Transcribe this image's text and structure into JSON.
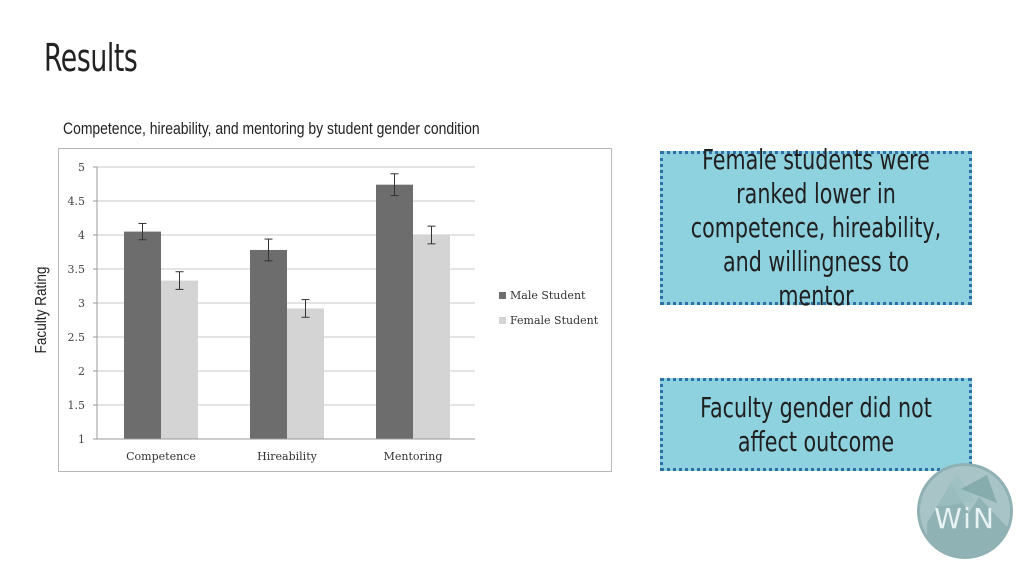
{
  "slide": {
    "title": "Results"
  },
  "chart_data": {
    "type": "bar",
    "title": "Competence, hireability, and mentoring by student gender condition",
    "xlabel": "",
    "ylabel": "Faculty Rating",
    "categories": [
      "Competence",
      "Hireability",
      "Mentoring"
    ],
    "series": [
      {
        "name": "Male Student",
        "values": [
          4.05,
          3.78,
          4.74
        ],
        "errors": [
          0.12,
          0.16,
          0.16
        ],
        "color": "#6d6d6d"
      },
      {
        "name": "Female Student",
        "values": [
          3.33,
          2.92,
          4.0
        ],
        "errors": [
          0.13,
          0.13,
          0.13
        ],
        "color": "#d4d4d4"
      }
    ],
    "ylim": [
      1,
      5
    ],
    "yticks": [
      "1",
      "1.5",
      "2",
      "2.5",
      "3",
      "3.5",
      "4",
      "4.5",
      "5"
    ],
    "grid": true,
    "legend_position": "right"
  },
  "callouts": {
    "first": "Female students were ranked lower in competence, hireability, and willingness to mentor",
    "second": "Faculty gender did not affect outcome"
  },
  "logo": {
    "text": "WiN",
    "icon": "win-circle-logo"
  }
}
